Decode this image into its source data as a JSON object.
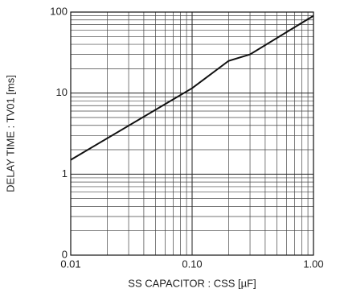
{
  "chart_data": {
    "type": "line",
    "x_label": "SS CAPACITOR : CSS [µF]",
    "y_label": "DELAY TIME : TV01 [ms]",
    "x": [
      0.01,
      0.1,
      0.2,
      0.3,
      1
    ],
    "series": [
      {
        "color": "#111111",
        "values": [
          1.5,
          11.5,
          25,
          30,
          90
        ]
      }
    ],
    "xlim": [
      0.01,
      1
    ],
    "ylim": [
      0.1,
      100
    ],
    "xticks": [
      0.01,
      {
        "value": 0.1,
        "label": "0.10"
      },
      {
        "value": 1,
        "label": "1.00"
      }
    ],
    "yticks": [
      {
        "value": 0.1,
        "label": "0"
      },
      1,
      10,
      100
    ],
    "xscale": "log",
    "yscale": "log",
    "grid": true
  }
}
